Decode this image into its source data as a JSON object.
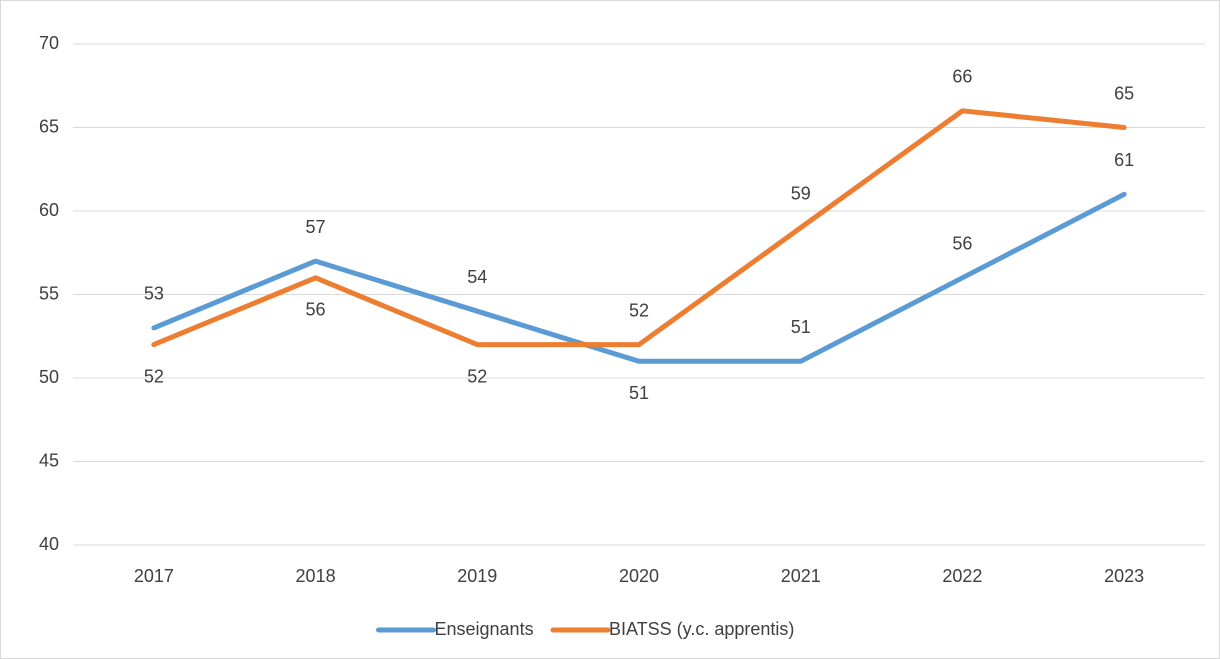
{
  "chart_data": {
    "type": "line",
    "categories": [
      "2017",
      "2018",
      "2019",
      "2020",
      "2021",
      "2022",
      "2023"
    ],
    "series": [
      {
        "name": "Enseignants",
        "color": "#5b9bd5",
        "values": [
          53,
          57,
          54,
          51,
          51,
          56,
          61
        ]
      },
      {
        "name": "BIATSS (y.c. apprentis)",
        "color": "#ed7d31",
        "values": [
          52,
          56,
          52,
          52,
          59,
          66,
          65
        ]
      }
    ],
    "ylim": [
      40,
      70
    ],
    "yticks": [
      40,
      45,
      50,
      55,
      60,
      65,
      70
    ],
    "grid": true,
    "legend": "bottom"
  }
}
